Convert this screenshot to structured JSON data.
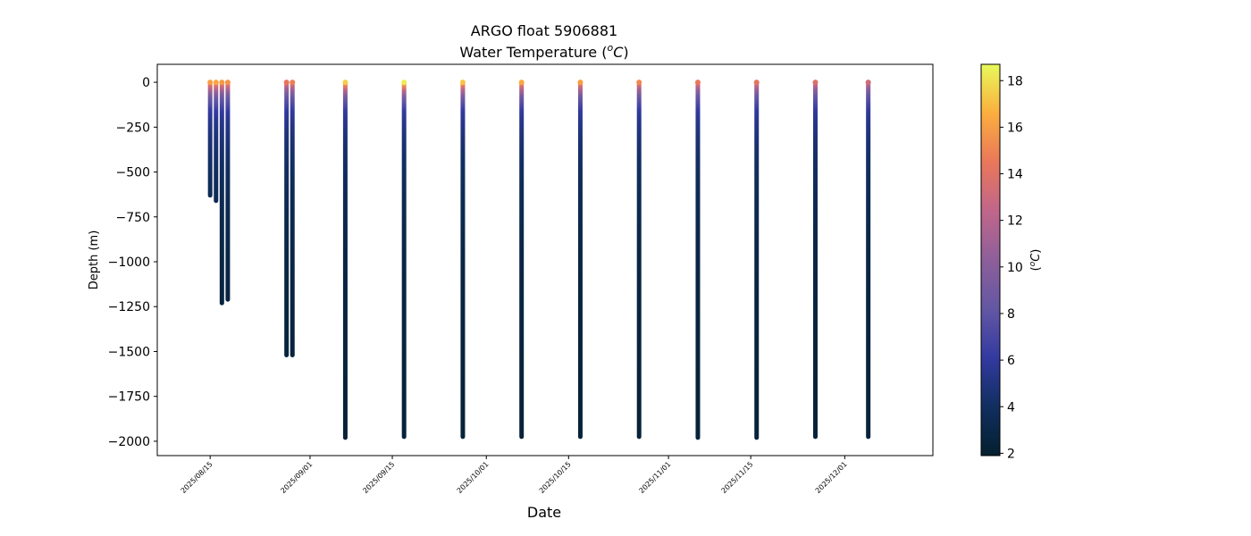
{
  "chart_data": {
    "type": "scatter",
    "title": "ARGO float 5906881",
    "subtitle_prefix": "Water Temperature (",
    "subtitle_unit_sup": "o",
    "subtitle_unit": "C",
    "subtitle_suffix": ")",
    "xlabel": "Date",
    "ylabel": "Depth (m)",
    "colorbar_label_prefix": "(",
    "colorbar_label_sup": "o",
    "colorbar_label_unit": "C",
    "colorbar_label_suffix": ")",
    "x_type": "date",
    "xlim": [
      "2025-08-06",
      "2025-12-16"
    ],
    "ylim": [
      -2080,
      100
    ],
    "x_ticks": [
      "2025-08-15",
      "2025-09-01",
      "2025-09-15",
      "2025-10-01",
      "2025-10-15",
      "2025-11-01",
      "2025-11-15",
      "2025-12-01"
    ],
    "x_tick_labels": [
      "2025/08/15",
      "2025/09/01",
      "2025/09/15",
      "2025/10/01",
      "2025/10/15",
      "2025/11/01",
      "2025/11/15",
      "2025/12/01"
    ],
    "y_ticks": [
      0,
      -250,
      -500,
      -750,
      -1000,
      -1250,
      -1500,
      -1750,
      -2000
    ],
    "y_tick_labels": [
      "0",
      "−250",
      "−500",
      "−750",
      "−1000",
      "−1250",
      "−1500",
      "−1750",
      "−2000"
    ],
    "colorbar": {
      "cmap": "thermal",
      "vmin": 1.9,
      "vmax": 18.7,
      "ticks": [
        2,
        4,
        6,
        8,
        10,
        12,
        14,
        16,
        18
      ],
      "tick_labels": [
        "2",
        "4",
        "6",
        "8",
        "10",
        "12",
        "14",
        "16",
        "18"
      ],
      "colors": [
        "#04202f",
        "#112e60",
        "#333aa0",
        "#6357a4",
        "#8e5f9a",
        "#c0668a",
        "#e9775a",
        "#fbae3e",
        "#e8fa5b"
      ]
    },
    "grid": false,
    "profiles": [
      {
        "date": "2025-08-15",
        "max_depth": -630,
        "surface_temp": 16.0
      },
      {
        "date": "2025-08-16",
        "max_depth": -660,
        "surface_temp": 16.3
      },
      {
        "date": "2025-08-17",
        "max_depth": -1230,
        "surface_temp": 15.8
      },
      {
        "date": "2025-08-18",
        "max_depth": -1210,
        "surface_temp": 15.6
      },
      {
        "date": "2025-08-28",
        "max_depth": -1520,
        "surface_temp": 14.4
      },
      {
        "date": "2025-08-29",
        "max_depth": -1520,
        "surface_temp": 14.8
      },
      {
        "date": "2025-09-07",
        "max_depth": -1980,
        "surface_temp": 17.5
      },
      {
        "date": "2025-09-17",
        "max_depth": -1975,
        "surface_temp": 18.3
      },
      {
        "date": "2025-09-27",
        "max_depth": -1975,
        "surface_temp": 17.2
      },
      {
        "date": "2025-10-07",
        "max_depth": -1975,
        "surface_temp": 16.4
      },
      {
        "date": "2025-10-17",
        "max_depth": -1975,
        "surface_temp": 16.0
      },
      {
        "date": "2025-10-27",
        "max_depth": -1975,
        "surface_temp": 15.2
      },
      {
        "date": "2025-11-06",
        "max_depth": -1980,
        "surface_temp": 14.5
      },
      {
        "date": "2025-11-16",
        "max_depth": -1980,
        "surface_temp": 14.2
      },
      {
        "date": "2025-11-26",
        "max_depth": -1975,
        "surface_temp": 13.8
      },
      {
        "date": "2025-12-05",
        "max_depth": -1975,
        "surface_temp": 13.0
      }
    ]
  }
}
